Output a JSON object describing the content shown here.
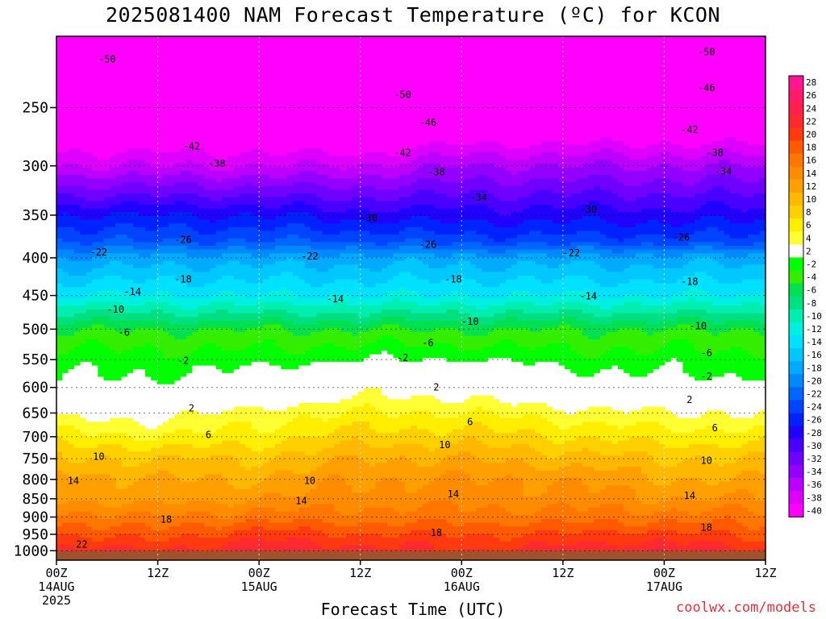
{
  "title": "2025081400 NAM Forecast Temperature (ºC) for KCON",
  "credit": "coolwx.com/models",
  "chart_data": {
    "type": "heatmap",
    "title": "2025081400 NAM Forecast Temperature (ºC) for KCON",
    "xlabel": "Forecast Time (UTC)",
    "ylabel": "",
    "x_hours_range": [
      0,
      84
    ],
    "ylim_pressure": [
      200,
      1030
    ],
    "y_log_scale": true,
    "y_ticks": [
      250,
      300,
      350,
      400,
      450,
      500,
      550,
      600,
      650,
      700,
      750,
      800,
      850,
      900,
      950,
      1000
    ],
    "x_ticks": [
      {
        "hour": 0,
        "l1": "00Z",
        "l2": "14AUG",
        "l3": "2025"
      },
      {
        "hour": 12,
        "l1": "12Z",
        "l2": "",
        "l3": ""
      },
      {
        "hour": 24,
        "l1": "00Z",
        "l2": "15AUG",
        "l3": ""
      },
      {
        "hour": 36,
        "l1": "12Z",
        "l2": "",
        "l3": ""
      },
      {
        "hour": 48,
        "l1": "00Z",
        "l2": "16AUG",
        "l3": ""
      },
      {
        "hour": 60,
        "l1": "12Z",
        "l2": "",
        "l3": ""
      },
      {
        "hour": 72,
        "l1": "00Z",
        "l2": "17AUG",
        "l3": ""
      },
      {
        "hour": 84,
        "l1": "12Z",
        "l2": "",
        "l3": ""
      }
    ],
    "grid": true,
    "ground_color": "#a0522d",
    "ground_pressure": 1000,
    "colorbar": {
      "levels": [
        28,
        26,
        24,
        22,
        20,
        18,
        16,
        14,
        12,
        10,
        8,
        6,
        4,
        2,
        -2,
        -4,
        -6,
        -8,
        -10,
        -12,
        -14,
        -16,
        -18,
        -20,
        -22,
        -24,
        -26,
        -28,
        -30,
        -32,
        -34,
        -36,
        -38,
        -40
      ],
      "colors": [
        "#ff1493",
        "#ff1a6a",
        "#ff2050",
        "#ff2a30",
        "#ff3a10",
        "#ff5a00",
        "#ff7600",
        "#ff8c00",
        "#ffa000",
        "#ffb800",
        "#ffd000",
        "#ffee00",
        "#ffff33",
        "#ffffff",
        "#00ff00",
        "#33ee00",
        "#00e050",
        "#00e080",
        "#00eeb0",
        "#00f0e0",
        "#00e0ff",
        "#00c8ff",
        "#00aaff",
        "#0088ff",
        "#0066ff",
        "#0044ff",
        "#0022ff",
        "#2200ff",
        "#4a00ff",
        "#7000ff",
        "#9400ff",
        "#bb00ff",
        "#dd00ff",
        "#ff00ff"
      ]
    },
    "profile_anchors": [
      {
        "hour": 0,
        "temps": [
          [
            1000,
            23
          ],
          [
            950,
            20
          ],
          [
            900,
            17
          ],
          [
            850,
            14
          ],
          [
            800,
            13
          ],
          [
            750,
            10
          ],
          [
            700,
            7
          ],
          [
            650,
            3
          ],
          [
            625,
            0
          ],
          [
            600,
            -1
          ],
          [
            580,
            -2
          ],
          [
            550,
            -3
          ],
          [
            500,
            -6
          ],
          [
            475,
            -10
          ],
          [
            450,
            -14
          ],
          [
            400,
            -20
          ],
          [
            380,
            -24
          ],
          [
            350,
            -28
          ],
          [
            300,
            -38
          ],
          [
            275,
            -42
          ],
          [
            250,
            -47
          ],
          [
            225,
            -50
          ],
          [
            200,
            -53
          ]
        ]
      },
      {
        "hour": 12,
        "temps": [
          [
            1000,
            22
          ],
          [
            950,
            19
          ],
          [
            900,
            16
          ],
          [
            850,
            13
          ],
          [
            800,
            12
          ],
          [
            750,
            10
          ],
          [
            700,
            6
          ],
          [
            650,
            3
          ],
          [
            620,
            0
          ],
          [
            600,
            -1
          ],
          [
            580,
            -2
          ],
          [
            550,
            -3
          ],
          [
            500,
            -6
          ],
          [
            475,
            -10
          ],
          [
            450,
            -14
          ],
          [
            400,
            -19
          ],
          [
            380,
            -24
          ],
          [
            350,
            -28
          ],
          [
            300,
            -38
          ],
          [
            275,
            -42
          ],
          [
            250,
            -47
          ],
          [
            225,
            -50
          ],
          [
            200,
            -53
          ]
        ]
      },
      {
        "hour": 24,
        "temps": [
          [
            1000,
            24
          ],
          [
            950,
            21
          ],
          [
            900,
            17
          ],
          [
            850,
            14
          ],
          [
            800,
            12
          ],
          [
            750,
            10
          ],
          [
            700,
            7
          ],
          [
            650,
            5
          ],
          [
            620,
            2
          ],
          [
            600,
            1
          ],
          [
            580,
            -1
          ],
          [
            550,
            -3
          ],
          [
            500,
            -6
          ],
          [
            475,
            -10
          ],
          [
            450,
            -14
          ],
          [
            400,
            -19
          ],
          [
            380,
            -24
          ],
          [
            350,
            -28
          ],
          [
            300,
            -38
          ],
          [
            275,
            -42
          ],
          [
            250,
            -48
          ],
          [
            225,
            -51
          ],
          [
            200,
            -53
          ]
        ]
      },
      {
        "hour": 36,
        "temps": [
          [
            1000,
            23
          ],
          [
            950,
            20
          ],
          [
            900,
            17
          ],
          [
            850,
            15
          ],
          [
            800,
            14
          ],
          [
            750,
            12
          ],
          [
            700,
            9
          ],
          [
            650,
            6
          ],
          [
            600,
            3
          ],
          [
            570,
            1
          ],
          [
            550,
            -2
          ],
          [
            500,
            -6
          ],
          [
            475,
            -10
          ],
          [
            450,
            -14
          ],
          [
            400,
            -19
          ],
          [
            380,
            -24
          ],
          [
            350,
            -29
          ],
          [
            300,
            -38
          ],
          [
            275,
            -43
          ],
          [
            250,
            -48
          ],
          [
            225,
            -51
          ],
          [
            200,
            -53
          ]
        ]
      },
      {
        "hour": 48,
        "temps": [
          [
            1000,
            22
          ],
          [
            950,
            20
          ],
          [
            900,
            17
          ],
          [
            850,
            15
          ],
          [
            800,
            14
          ],
          [
            750,
            12
          ],
          [
            700,
            9
          ],
          [
            650,
            6
          ],
          [
            600,
            3
          ],
          [
            570,
            1
          ],
          [
            550,
            -2
          ],
          [
            500,
            -6
          ],
          [
            475,
            -10
          ],
          [
            450,
            -14
          ],
          [
            400,
            -19
          ],
          [
            380,
            -25
          ],
          [
            350,
            -29
          ],
          [
            300,
            -36
          ],
          [
            275,
            -41
          ],
          [
            250,
            -45
          ],
          [
            225,
            -48
          ],
          [
            200,
            -50
          ]
        ]
      },
      {
        "hour": 60,
        "temps": [
          [
            1000,
            23
          ],
          [
            950,
            20
          ],
          [
            900,
            17
          ],
          [
            850,
            15
          ],
          [
            800,
            14
          ],
          [
            750,
            11
          ],
          [
            700,
            8
          ],
          [
            650,
            5
          ],
          [
            620,
            2
          ],
          [
            600,
            0
          ],
          [
            580,
            -1
          ],
          [
            550,
            -3
          ],
          [
            500,
            -6
          ],
          [
            475,
            -10
          ],
          [
            450,
            -14
          ],
          [
            400,
            -19
          ],
          [
            380,
            -25
          ],
          [
            350,
            -29
          ],
          [
            300,
            -36
          ],
          [
            275,
            -41
          ],
          [
            250,
            -45
          ],
          [
            225,
            -48
          ],
          [
            200,
            -50
          ]
        ]
      },
      {
        "hour": 72,
        "temps": [
          [
            1000,
            24
          ],
          [
            950,
            21
          ],
          [
            900,
            17
          ],
          [
            850,
            14
          ],
          [
            800,
            12
          ],
          [
            750,
            10
          ],
          [
            700,
            7
          ],
          [
            650,
            4
          ],
          [
            620,
            2
          ],
          [
            600,
            0
          ],
          [
            580,
            -2
          ],
          [
            550,
            -3
          ],
          [
            500,
            -6
          ],
          [
            475,
            -10
          ],
          [
            450,
            -14
          ],
          [
            400,
            -19
          ],
          [
            380,
            -25
          ],
          [
            350,
            -29
          ],
          [
            300,
            -36
          ],
          [
            275,
            -41
          ],
          [
            250,
            -45
          ],
          [
            225,
            -48
          ],
          [
            200,
            -50
          ]
        ]
      },
      {
        "hour": 84,
        "temps": [
          [
            1000,
            22
          ],
          [
            950,
            19
          ],
          [
            900,
            17
          ],
          [
            850,
            14
          ],
          [
            800,
            12
          ],
          [
            750,
            10
          ],
          [
            700,
            7
          ],
          [
            650,
            4
          ],
          [
            620,
            2
          ],
          [
            600,
            0
          ],
          [
            580,
            -2
          ],
          [
            550,
            -3
          ],
          [
            500,
            -6
          ],
          [
            475,
            -10
          ],
          [
            450,
            -14
          ],
          [
            400,
            -19
          ],
          [
            380,
            -25
          ],
          [
            350,
            -29
          ],
          [
            300,
            -36
          ],
          [
            275,
            -41
          ],
          [
            250,
            -45
          ],
          [
            225,
            -48
          ],
          [
            200,
            -50
          ]
        ]
      }
    ],
    "contour_labels": [
      {
        "text": "-50",
        "hour": 6,
        "p": 215
      },
      {
        "text": "-50",
        "hour": 41,
        "p": 240
      },
      {
        "text": "-50",
        "hour": 77,
        "p": 210
      },
      {
        "text": "-46",
        "hour": 44,
        "p": 262
      },
      {
        "text": "-46",
        "hour": 77,
        "p": 235
      },
      {
        "text": "-42",
        "hour": 16,
        "p": 282
      },
      {
        "text": "-42",
        "hour": 41,
        "p": 288
      },
      {
        "text": "-42",
        "hour": 75,
        "p": 268
      },
      {
        "text": "-38",
        "hour": 19,
        "p": 298
      },
      {
        "text": "-38",
        "hour": 45,
        "p": 306
      },
      {
        "text": "-38",
        "hour": 78,
        "p": 288
      },
      {
        "text": "-34",
        "hour": 50,
        "p": 331
      },
      {
        "text": "-34",
        "hour": 79,
        "p": 305
      },
      {
        "text": "-30",
        "hour": 37,
        "p": 353
      },
      {
        "text": "-30",
        "hour": 63,
        "p": 344
      },
      {
        "text": "-26",
        "hour": 15,
        "p": 378
      },
      {
        "text": "-26",
        "hour": 44,
        "p": 384
      },
      {
        "text": "-26",
        "hour": 74,
        "p": 375
      },
      {
        "text": "-22",
        "hour": 5,
        "p": 393
      },
      {
        "text": "-22",
        "hour": 30,
        "p": 398
      },
      {
        "text": "-22",
        "hour": 61,
        "p": 394
      },
      {
        "text": "-18",
        "hour": 15,
        "p": 428
      },
      {
        "text": "-18",
        "hour": 47,
        "p": 428
      },
      {
        "text": "-18",
        "hour": 75,
        "p": 431
      },
      {
        "text": "-14",
        "hour": 9,
        "p": 445
      },
      {
        "text": "-14",
        "hour": 33,
        "p": 455
      },
      {
        "text": "-14",
        "hour": 63,
        "p": 451
      },
      {
        "text": "-10",
        "hour": 7,
        "p": 470
      },
      {
        "text": "-10",
        "hour": 49,
        "p": 488
      },
      {
        "text": "-10",
        "hour": 76,
        "p": 495
      },
      {
        "text": "-6",
        "hour": 8,
        "p": 505
      },
      {
        "text": "-6",
        "hour": 44,
        "p": 522
      },
      {
        "text": "-6",
        "hour": 77,
        "p": 539
      },
      {
        "text": "-2",
        "hour": 15,
        "p": 552
      },
      {
        "text": "-2",
        "hour": 41,
        "p": 547
      },
      {
        "text": "-2",
        "hour": 77,
        "p": 580
      },
      {
        "text": "2",
        "hour": 45,
        "p": 600
      },
      {
        "text": "2",
        "hour": 16,
        "p": 640
      },
      {
        "text": "2",
        "hour": 75,
        "p": 624
      },
      {
        "text": "6",
        "hour": 18,
        "p": 696
      },
      {
        "text": "6",
        "hour": 49,
        "p": 668
      },
      {
        "text": "6",
        "hour": 78,
        "p": 681
      },
      {
        "text": "10",
        "hour": 5,
        "p": 745
      },
      {
        "text": "10",
        "hour": 46,
        "p": 718
      },
      {
        "text": "10",
        "hour": 77,
        "p": 754
      },
      {
        "text": "10",
        "hour": 30,
        "p": 803
      },
      {
        "text": "14",
        "hour": 2,
        "p": 803
      },
      {
        "text": "14",
        "hour": 29,
        "p": 856
      },
      {
        "text": "14",
        "hour": 47,
        "p": 838
      },
      {
        "text": "14",
        "hour": 75,
        "p": 842
      },
      {
        "text": "18",
        "hour": 13,
        "p": 907
      },
      {
        "text": "18",
        "hour": 45,
        "p": 945
      },
      {
        "text": "18",
        "hour": 77,
        "p": 930
      },
      {
        "text": "22",
        "hour": 3,
        "p": 980
      }
    ]
  }
}
